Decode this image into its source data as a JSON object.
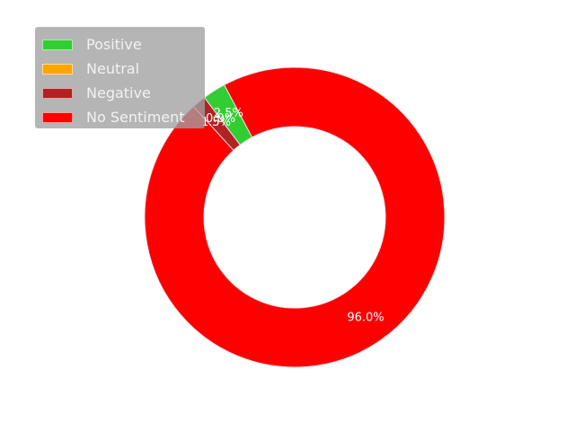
{
  "chart_data": {
    "type": "pie",
    "donut": true,
    "title": "",
    "slices": [
      {
        "label": "Positive",
        "value": 2.5,
        "pct_label": "2.5%",
        "color": "#32cd32"
      },
      {
        "label": "Neutral",
        "value": 0.0,
        "pct_label": "0.0%",
        "color": "#ffa500"
      },
      {
        "label": "Negative",
        "value": 1.5,
        "pct_label": "1.5%",
        "color": "#b22222"
      },
      {
        "label": "No Sentiment",
        "value": 96.0,
        "pct_label": "96.0%",
        "color": "#ff0000"
      }
    ],
    "legend_position": "top-left"
  }
}
